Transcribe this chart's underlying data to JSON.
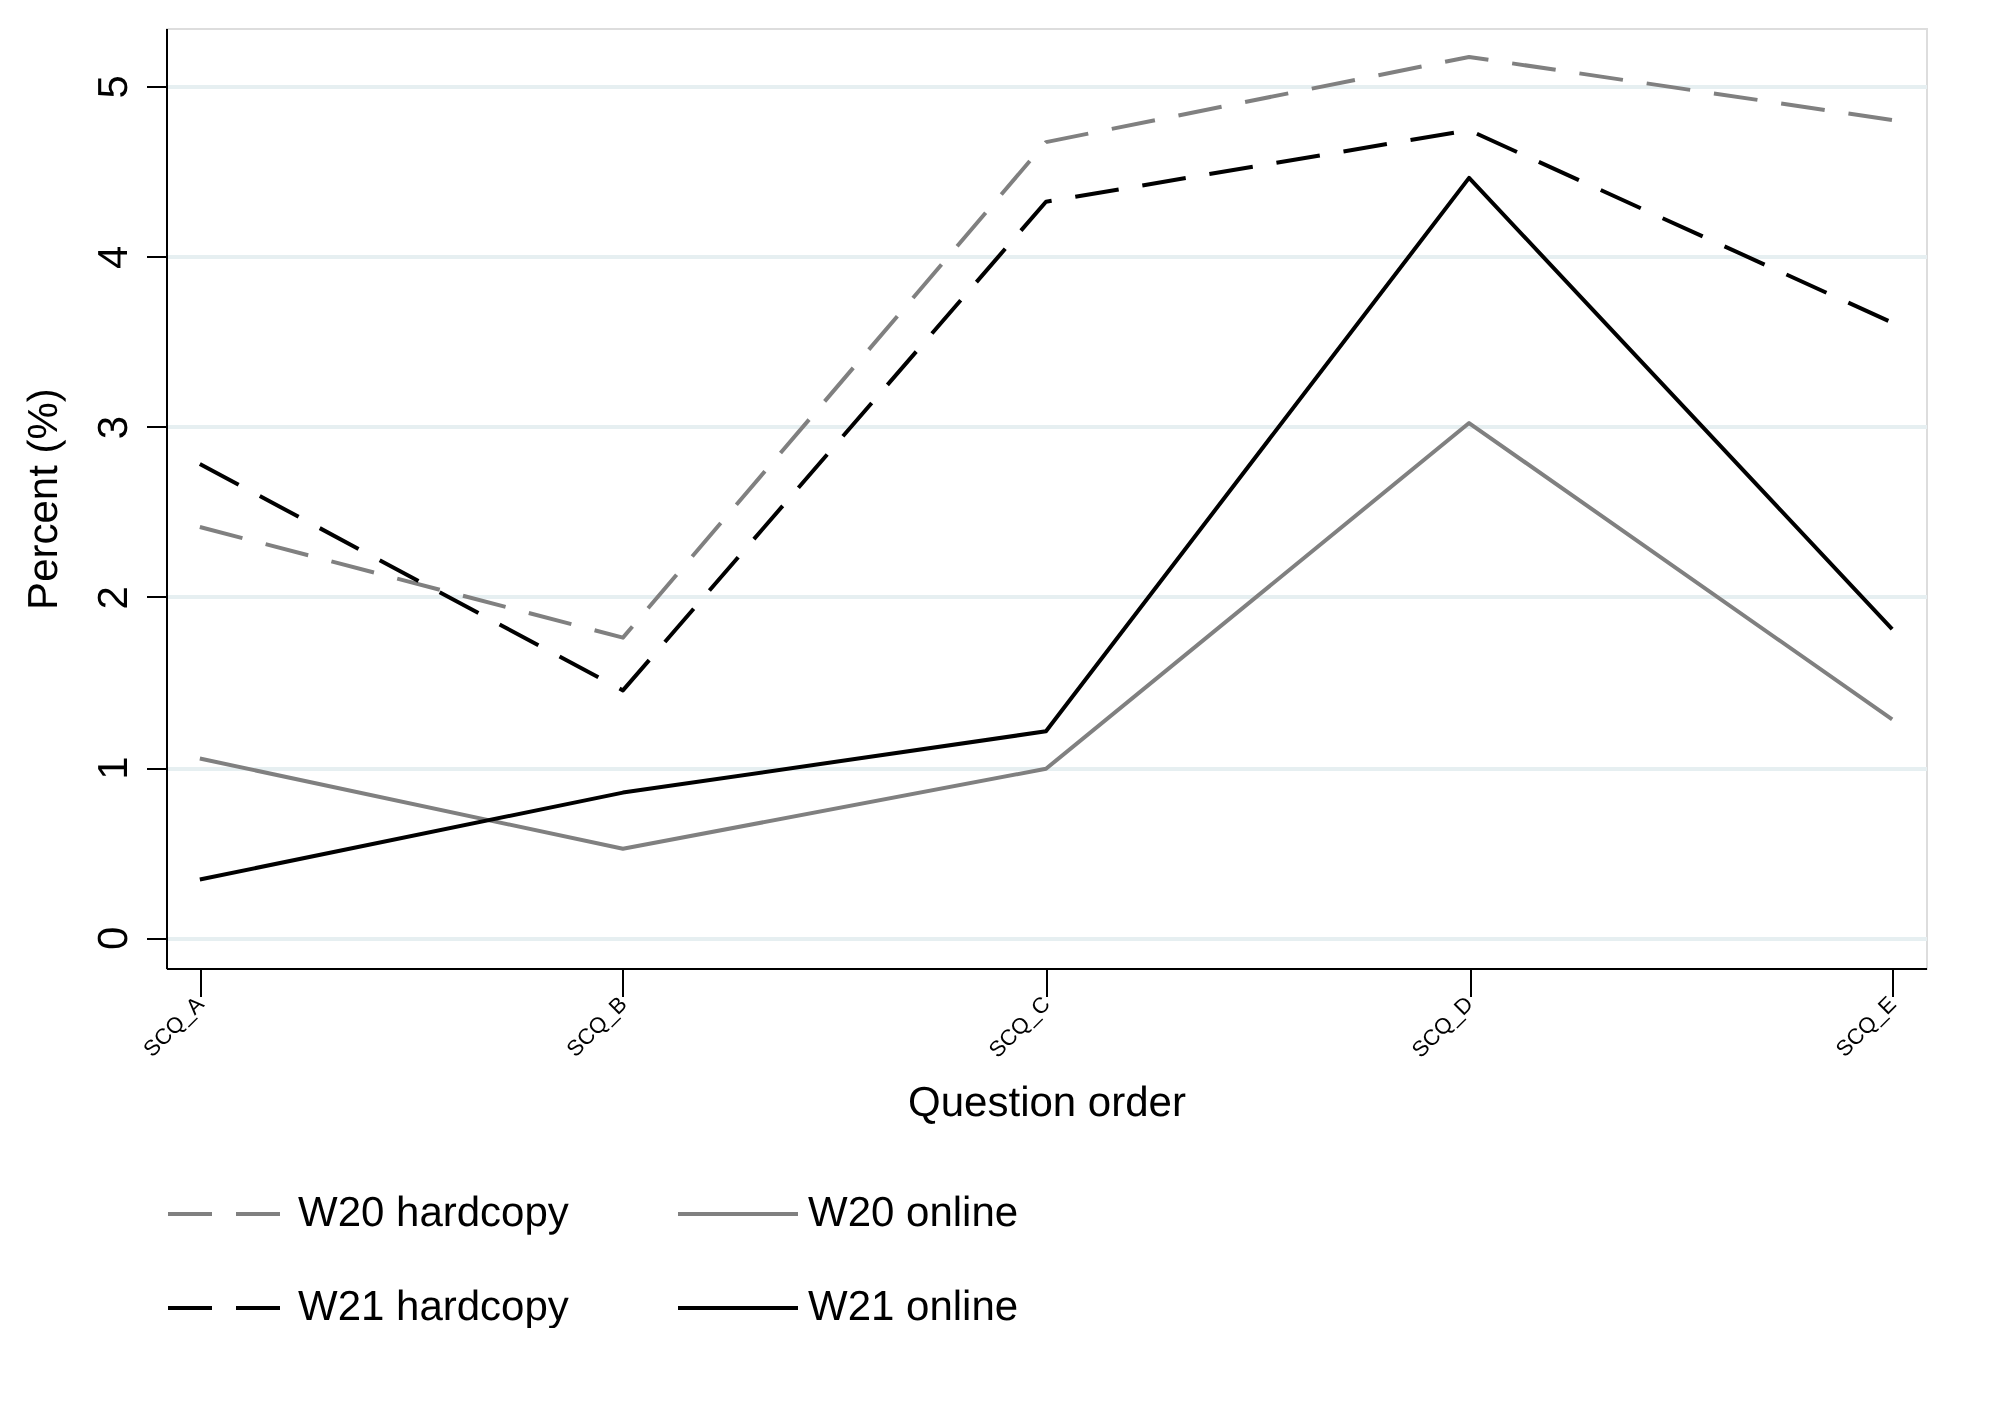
{
  "chart_data": {
    "type": "line",
    "xlabel": "Question order",
    "ylabel": "Percent (%)",
    "categories": [
      "SCQ_A",
      "SCQ_B",
      "SCQ_C",
      "SCQ_D",
      "SCQ_E"
    ],
    "series": [
      {
        "name": "W20 hardcopy",
        "color": "#808080",
        "line_style": "dashed",
        "values": [
          2.41,
          1.76,
          4.67,
          5.17,
          4.8
        ]
      },
      {
        "name": "W20 online",
        "color": "#808080",
        "line_style": "solid",
        "values": [
          1.05,
          0.52,
          0.99,
          3.02,
          1.28
        ]
      },
      {
        "name": "W21 hardcopy",
        "color": "#000000",
        "line_style": "dashed",
        "values": [
          2.78,
          1.45,
          4.32,
          4.74,
          3.61
        ]
      },
      {
        "name": "W21 online",
        "color": "#000000",
        "line_style": "solid",
        "values": [
          0.34,
          0.85,
          1.21,
          4.46,
          1.81
        ]
      }
    ],
    "ylim": [
      -0.18,
      5.34
    ],
    "yticks": [
      0,
      1,
      2,
      3,
      4,
      5
    ],
    "grid": "y",
    "legend": "bottom",
    "marker": "none"
  }
}
